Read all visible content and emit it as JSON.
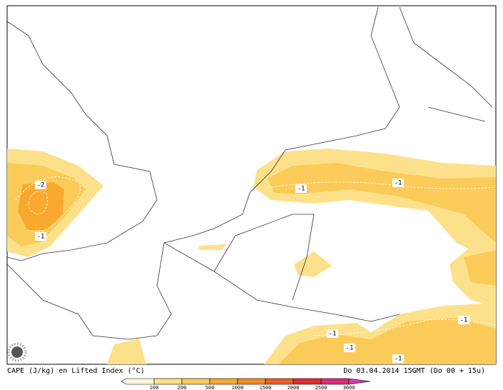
{
  "footer": {
    "left": "CAPE (J/kg) en Lifted Index (°C)",
    "right": "Do 03.04.2014 15GMT (Do 00 + 15u)"
  },
  "colorbar": {
    "labels": [
      "100",
      "200",
      "500",
      "1000",
      "1500",
      "2000",
      "2500",
      "3000"
    ],
    "colors": [
      "#fffbe2",
      "#fde08a",
      "#fbcb5a",
      "#f8a92e",
      "#f38a25",
      "#ec5f25",
      "#e32d35",
      "#de2a7a",
      "#d43bb6"
    ]
  },
  "contour_labels": [
    "-2",
    "-1",
    "-1",
    "-1",
    "-1",
    "-1",
    "-1",
    "-1"
  ]
}
